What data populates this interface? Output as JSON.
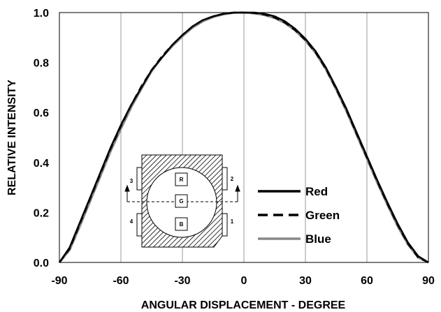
{
  "chart_data": {
    "type": "line",
    "title": "",
    "xlabel": "ANGULAR DISPLACEMENT - DEGREE",
    "ylabel": "RELATIVE INTENSITY",
    "xlim": [
      -90,
      90
    ],
    "ylim": [
      0,
      1.0
    ],
    "x_ticks": [
      "-90",
      "-60",
      "-30",
      "0",
      "30",
      "60",
      "90"
    ],
    "y_ticks": [
      "0.0",
      "0.2",
      "0.4",
      "0.6",
      "0.8",
      "1.0"
    ],
    "grid": "vertical",
    "legend": "center-right",
    "x": [
      -90,
      -85,
      -80,
      -75,
      -70,
      -65,
      -60,
      -55,
      -50,
      -45,
      -40,
      -35,
      -30,
      -25,
      -20,
      -15,
      -10,
      -5,
      0,
      5,
      10,
      15,
      20,
      25,
      30,
      35,
      40,
      45,
      50,
      55,
      60,
      65,
      70,
      75,
      80,
      85,
      90
    ],
    "series": [
      {
        "name": "Red",
        "color": "#000000",
        "dash": "solid",
        "values": [
          0.0,
          0.06,
          0.16,
          0.26,
          0.36,
          0.46,
          0.55,
          0.63,
          0.7,
          0.77,
          0.82,
          0.87,
          0.91,
          0.945,
          0.97,
          0.985,
          0.995,
          1.0,
          1.0,
          1.0,
          0.995,
          0.985,
          0.965,
          0.935,
          0.895,
          0.845,
          0.78,
          0.7,
          0.615,
          0.52,
          0.425,
          0.33,
          0.24,
          0.155,
          0.08,
          0.025,
          0.0
        ]
      },
      {
        "name": "Green",
        "color": "#000000",
        "dash": "dashed",
        "values": [
          0.0,
          0.055,
          0.155,
          0.255,
          0.355,
          0.455,
          0.545,
          0.63,
          0.705,
          0.77,
          0.825,
          0.87,
          0.91,
          0.945,
          0.97,
          0.985,
          0.995,
          1.0,
          1.0,
          0.998,
          0.992,
          0.98,
          0.96,
          0.93,
          0.89,
          0.84,
          0.775,
          0.695,
          0.61,
          0.515,
          0.42,
          0.325,
          0.235,
          0.15,
          0.075,
          0.02,
          0.0
        ]
      },
      {
        "name": "Blue",
        "color": "#888888",
        "dash": "solid",
        "values": [
          0.0,
          0.05,
          0.145,
          0.245,
          0.345,
          0.445,
          0.535,
          0.62,
          0.695,
          0.765,
          0.82,
          0.865,
          0.905,
          0.94,
          0.965,
          0.982,
          0.993,
          0.999,
          1.0,
          0.997,
          0.99,
          0.978,
          0.958,
          0.928,
          0.888,
          0.838,
          0.772,
          0.692,
          0.605,
          0.51,
          0.415,
          0.32,
          0.23,
          0.145,
          0.072,
          0.02,
          0.0
        ]
      }
    ]
  },
  "inset": {
    "die_labels": [
      "R",
      "G",
      "B"
    ],
    "pin_labels": [
      "3",
      "4",
      "2",
      "1"
    ]
  }
}
